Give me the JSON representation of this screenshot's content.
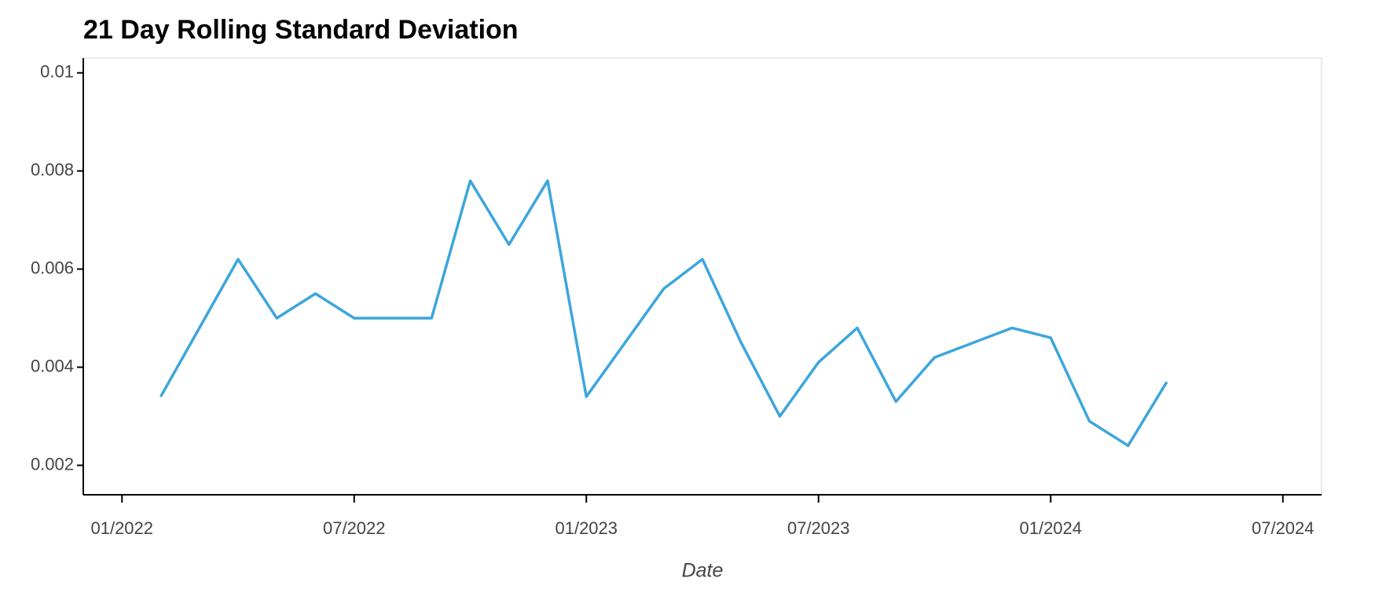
{
  "chart_data": {
    "type": "line",
    "title": "21 Day Rolling Standard Deviation",
    "x_label": "Date",
    "x": [
      "2022-02",
      "2022-03",
      "2022-04",
      "2022-05",
      "2022-06",
      "2022-07",
      "2022-08",
      "2022-09",
      "2022-10",
      "2022-11",
      "2022-12",
      "2023-01",
      "2023-02",
      "2023-03",
      "2023-04",
      "2023-05",
      "2023-06",
      "2023-07",
      "2023-08",
      "2023-09",
      "2023-10",
      "2023-11",
      "2023-12",
      "2024-01",
      "2024-02",
      "2024-03",
      "2024-04"
    ],
    "series": [
      {
        "color": "#3ca6dc",
        "values": [
          0.0034,
          0.0048,
          0.0062,
          0.005,
          0.0055,
          0.005,
          0.005,
          0.005,
          0.0078,
          0.0065,
          0.0078,
          0.0034,
          0.0045,
          0.0056,
          0.0062,
          0.0045,
          0.003,
          0.0041,
          0.0048,
          0.0033,
          0.0042,
          0.0045,
          0.0048,
          0.0046,
          0.0029,
          0.0024,
          0.0037
        ]
      }
    ],
    "xlim": [
      "2021-12",
      "2024-08"
    ],
    "xticks": [
      {
        "value": "2022-01",
        "label": "01/2022"
      },
      {
        "value": "2022-07",
        "label": "07/2022"
      },
      {
        "value": "2023-01",
        "label": "01/2023"
      },
      {
        "value": "2023-07",
        "label": "07/2023"
      },
      {
        "value": "2024-01",
        "label": "01/2024"
      },
      {
        "value": "2024-07",
        "label": "07/2024"
      }
    ],
    "ylim": [
      0.0014,
      0.0103
    ],
    "yticks": [
      0.002,
      0.004,
      0.006,
      0.008,
      0.01
    ],
    "grid": false
  }
}
